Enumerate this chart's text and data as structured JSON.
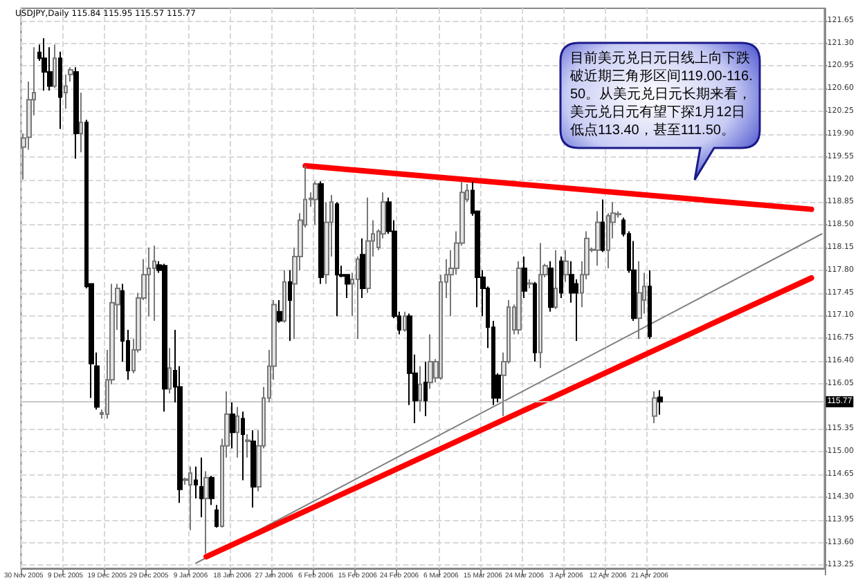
{
  "chart_data": {
    "type": "candlestick",
    "title": "USDJPY,Daily 115.84 115.95 115.57 115.77",
    "annotations": [
      "目前美元兑日元日线上向下跌破近期三角形区间119.00-116.50。从美元兑日元长期来看，美元兑日元有望下探1月12日低点113.40，甚至111.50。"
    ],
    "categories": [
      "30 Nov 2005",
      null,
      null,
      null,
      null,
      null,
      null,
      null,
      "9 Dec 2005",
      null,
      null,
      null,
      null,
      null,
      null,
      null,
      "19 Dec 2005",
      null,
      null,
      null,
      null,
      null,
      null,
      null,
      "29 Dec 2005",
      null,
      null,
      null,
      null,
      null,
      null,
      null,
      "9 Jan 2006",
      null,
      null,
      null,
      null,
      null,
      null,
      null,
      "18 Jan 2006",
      null,
      null,
      null,
      null,
      null,
      null,
      null,
      "27 Jan 2006",
      null,
      null,
      null,
      null,
      null,
      null,
      null,
      "6 Feb 2006",
      null,
      null,
      null,
      null,
      null,
      null,
      null,
      "15 Feb 2006",
      null,
      null,
      null,
      null,
      null,
      null,
      null,
      "24 Feb 2006",
      null,
      null,
      null,
      null,
      null,
      null,
      null,
      "6 Mar 2006",
      null,
      null,
      null,
      null,
      null,
      null,
      null,
      "15 Mar 2006",
      null,
      null,
      null,
      null,
      null,
      null,
      null,
      "24 Mar 2006",
      null,
      null,
      null,
      null,
      null,
      null,
      null,
      "3 Apr 2006",
      null,
      null,
      null,
      null,
      null,
      null,
      null,
      "12 Apr 2006",
      null,
      null,
      null,
      null,
      null,
      null,
      null,
      "21 Apr 2006",
      null,
      null,
      null,
      null,
      null,
      null,
      null,
      null,
      null,
      null,
      null,
      null,
      null,
      null,
      null,
      null,
      null,
      null,
      null,
      null,
      null,
      null,
      null,
      null,
      null,
      null,
      null,
      null,
      null,
      null,
      null,
      null,
      null
    ],
    "ohlc": [
      [
        119.7,
        119.91,
        119.2,
        119.84
      ],
      [
        119.85,
        120.71,
        119.66,
        120.43
      ],
      [
        120.43,
        121.24,
        120.19,
        120.54
      ],
      [
        121.16,
        121.28,
        121.03,
        121.07
      ],
      [
        121.07,
        121.38,
        120.57,
        120.86
      ],
      [
        120.86,
        121.24,
        120.57,
        120.64
      ],
      [
        120.64,
        121.28,
        120.61,
        121.07
      ],
      [
        121.07,
        121.17,
        119.98,
        120.47
      ],
      [
        120.54,
        120.82,
        120.29,
        120.64
      ],
      [
        120.82,
        120.93,
        120.71,
        120.89
      ],
      [
        120.86,
        120.93,
        119.52,
        119.91
      ],
      [
        119.91,
        120.54,
        119.62,
        120.08
      ],
      [
        120.08,
        120.12,
        117.52,
        117.55
      ],
      [
        117.59,
        117.59,
        115.83,
        116.36
      ],
      [
        116.32,
        116.53,
        115.65,
        115.69
      ],
      [
        115.58,
        115.65,
        115.51,
        115.6
      ],
      [
        115.58,
        116.57,
        115.51,
        116.11
      ],
      [
        116.11,
        117.59,
        116.04,
        117.3
      ],
      [
        117.27,
        117.59,
        116.88,
        117.52
      ],
      [
        117.48,
        117.59,
        116.39,
        116.71
      ],
      [
        116.71,
        116.88,
        116.11,
        116.25
      ],
      [
        116.25,
        116.74,
        116.21,
        116.57
      ],
      [
        116.57,
        117.45,
        116.53,
        117.37
      ],
      [
        117.37,
        117.97,
        117.34,
        117.73
      ],
      [
        117.73,
        118.15,
        117.09,
        117.83
      ],
      [
        117.83,
        118.18,
        117.02,
        117.94
      ],
      [
        117.88,
        117.94,
        117.76,
        117.8
      ],
      [
        117.87,
        117.9,
        115.62,
        115.97
      ],
      [
        115.97,
        116.6,
        115.9,
        116.29
      ],
      [
        116.25,
        116.88,
        115.76,
        116.0
      ],
      [
        116.0,
        116.32,
        114.21,
        114.42
      ],
      [
        114.56,
        114.6,
        114.49,
        114.58
      ],
      [
        114.49,
        114.77,
        113.79,
        114.67
      ],
      [
        114.56,
        114.77,
        114.28,
        114.49
      ],
      [
        114.46,
        114.91,
        113.99,
        114.28
      ],
      [
        114.28,
        114.7,
        113.43,
        114.6
      ],
      [
        114.6,
        114.63,
        114.18,
        114.28
      ],
      [
        114.1,
        114.18,
        113.83,
        113.85
      ],
      [
        113.85,
        115.2,
        113.83,
        115.09
      ],
      [
        115.09,
        115.93,
        114.91,
        115.58
      ],
      [
        115.58,
        115.76,
        115.05,
        115.3
      ],
      [
        115.3,
        115.69,
        114.91,
        115.55
      ],
      [
        115.51,
        115.62,
        114.56,
        115.27
      ],
      [
        115.16,
        115.27,
        114.91,
        115.18
      ],
      [
        115.16,
        115.33,
        114.14,
        114.46
      ],
      [
        114.46,
        115.33,
        114.39,
        115.09
      ],
      [
        115.09,
        116.0,
        115.05,
        115.83
      ],
      [
        115.83,
        116.57,
        115.76,
        116.32
      ],
      [
        116.32,
        117.34,
        116.11,
        117.27
      ],
      [
        117.16,
        117.34,
        116.99,
        117.02
      ],
      [
        117.02,
        117.8,
        116.99,
        117.62
      ],
      [
        117.62,
        117.8,
        116.71,
        117.34
      ],
      [
        117.59,
        118.15,
        116.74,
        118.01
      ],
      [
        118.01,
        118.68,
        117.8,
        118.57
      ],
      [
        118.5,
        119.41,
        118.46,
        118.89
      ],
      [
        118.89,
        119.0,
        118.78,
        118.91
      ],
      [
        118.89,
        119.17,
        118.5,
        119.13
      ],
      [
        119.13,
        119.17,
        117.59,
        117.69
      ],
      [
        117.73,
        118.85,
        117.59,
        118.54
      ],
      [
        118.54,
        118.96,
        118.01,
        118.85
      ],
      [
        118.82,
        118.85,
        117.09,
        117.73
      ],
      [
        117.73,
        117.87,
        117.69,
        117.71
      ],
      [
        117.73,
        117.73,
        117.37,
        117.59
      ],
      [
        117.59,
        117.76,
        117.09,
        117.66
      ],
      [
        117.66,
        118.01,
        116.74,
        117.97
      ],
      [
        118.04,
        118.29,
        117.37,
        117.52
      ],
      [
        117.52,
        118.92,
        117.45,
        118.25
      ],
      [
        118.25,
        118.57,
        118.01,
        118.36
      ],
      [
        118.15,
        118.43,
        118.11,
        118.4
      ],
      [
        118.36,
        119.0,
        118.29,
        118.85
      ],
      [
        118.85,
        118.92,
        118.36,
        118.4
      ],
      [
        118.4,
        118.57,
        117.06,
        117.09
      ],
      [
        117.09,
        117.16,
        116.81,
        116.88
      ],
      [
        116.88,
        117.16,
        116.85,
        117.09
      ],
      [
        117.09,
        117.13,
        115.72,
        116.21
      ],
      [
        116.21,
        116.5,
        115.44,
        115.79
      ],
      [
        115.79,
        116.32,
        115.62,
        116.04
      ],
      [
        116.07,
        116.39,
        115.55,
        115.79
      ],
      [
        116.07,
        116.81,
        115.97,
        116.39
      ],
      [
        116.14,
        116.43,
        116.07,
        116.39
      ],
      [
        116.14,
        117.73,
        116.11,
        117.62
      ],
      [
        117.62,
        117.97,
        117.37,
        117.73
      ],
      [
        117.73,
        118.11,
        117.09,
        117.83
      ],
      [
        117.83,
        118.4,
        117.73,
        118.22
      ],
      [
        118.22,
        119.17,
        118.18,
        119.0
      ],
      [
        118.89,
        119.13,
        118.85,
        119.03
      ],
      [
        119.03,
        119.17,
        118.64,
        118.68
      ],
      [
        118.71,
        118.71,
        117.23,
        117.69
      ],
      [
        117.69,
        117.8,
        117.09,
        117.52
      ],
      [
        117.52,
        117.55,
        116.6,
        116.92
      ],
      [
        116.92,
        117.02,
        115.72,
        115.83
      ],
      [
        116.18,
        116.21,
        115.76,
        115.83
      ],
      [
        116.18,
        116.53,
        115.55,
        116.39
      ],
      [
        116.39,
        117.34,
        116.36,
        117.23
      ],
      [
        116.88,
        117.27,
        116.81,
        117.23
      ],
      [
        116.88,
        117.94,
        116.81,
        117.83
      ],
      [
        117.83,
        118.01,
        117.37,
        117.48
      ],
      [
        117.59,
        117.66,
        117.52,
        117.6
      ],
      [
        117.59,
        117.62,
        116.39,
        116.53
      ],
      [
        116.53,
        118.22,
        116.29,
        117.73
      ],
      [
        117.73,
        117.9,
        117.69,
        117.87
      ],
      [
        117.83,
        117.94,
        117.16,
        117.23
      ],
      [
        117.23,
        118.11,
        117.2,
        117.52
      ],
      [
        117.94,
        118.01,
        117.37,
        117.45
      ],
      [
        117.73,
        118.11,
        117.62,
        117.94
      ],
      [
        117.73,
        117.94,
        117.3,
        117.45
      ],
      [
        117.59,
        117.66,
        116.71,
        117.45
      ],
      [
        117.45,
        117.94,
        117.23,
        117.73
      ],
      [
        117.73,
        118.4,
        117.66,
        118.29
      ],
      [
        118.11,
        118.15,
        118.08,
        118.12
      ],
      [
        118.11,
        118.71,
        117.87,
        118.54
      ],
      [
        118.54,
        118.89,
        118.08,
        118.11
      ],
      [
        118.11,
        118.68,
        117.83,
        118.64
      ],
      [
        118.54,
        118.85,
        118.29,
        118.68
      ],
      [
        118.66,
        118.71,
        118.61,
        118.67
      ],
      [
        118.57,
        118.61,
        118.32,
        118.36
      ],
      [
        118.36,
        118.4,
        117.76,
        117.8
      ],
      [
        117.8,
        118.25,
        117.02,
        117.06
      ],
      [
        117.06,
        117.94,
        116.74,
        117.45
      ],
      [
        117.34,
        117.76,
        117.13,
        117.55
      ],
      [
        117.55,
        117.8,
        116.74,
        116.78
      ],
      [
        115.55,
        115.93,
        115.44,
        115.83
      ],
      [
        115.84,
        115.95,
        115.57,
        115.77
      ],
      null,
      null,
      null,
      null,
      null,
      null,
      null,
      null,
      null,
      null,
      null,
      null,
      null,
      null,
      null,
      null,
      null,
      null,
      null,
      null,
      null,
      null,
      null,
      null,
      null,
      null,
      null,
      null,
      null,
      null,
      null
    ],
    "series": [
      {
        "type": "line",
        "color": "#ff0000",
        "values": [
          null,
          null,
          null,
          null,
          null,
          null,
          null,
          null,
          null,
          null,
          null,
          null,
          null,
          null,
          null,
          null,
          null,
          null,
          null,
          null,
          null,
          null,
          null,
          null,
          null,
          null,
          null,
          null,
          null,
          null,
          null,
          null,
          null,
          null,
          null,
          null,
          null,
          null,
          null,
          null,
          null,
          null,
          null,
          null,
          null,
          null,
          null,
          null,
          null,
          null,
          null,
          null,
          null,
          null,
          119.41,
          null,
          null,
          null,
          null,
          null,
          null,
          null,
          null,
          null,
          null,
          null,
          null,
          null,
          null,
          null,
          null,
          null,
          null,
          null,
          null,
          null,
          null,
          null,
          null,
          null,
          null,
          null,
          null,
          null,
          null,
          null,
          null,
          null,
          null,
          null,
          null,
          null,
          null,
          null,
          null,
          null,
          null,
          null,
          null,
          null,
          null,
          null,
          null,
          null,
          null,
          null,
          null,
          null,
          null,
          null,
          null,
          null,
          null,
          null,
          null,
          null,
          null,
          null,
          null,
          null,
          null,
          null,
          null,
          null,
          null,
          null,
          null,
          null,
          null,
          null,
          null,
          null,
          null,
          null,
          null,
          null,
          null,
          null,
          null,
          null,
          null,
          null,
          null,
          null,
          null,
          null,
          null,
          null,
          null,
          null,
          null,
          118.74,
          null,
          null
        ]
      },
      {
        "type": "line",
        "color": "#808080",
        "values": [
          null,
          null,
          null,
          null,
          null,
          null,
          null,
          null,
          null,
          null,
          null,
          null,
          null,
          null,
          null,
          null,
          null,
          null,
          null,
          null,
          null,
          null,
          null,
          null,
          null,
          null,
          null,
          null,
          null,
          null,
          null,
          null,
          null,
          113.28,
          null,
          null,
          null,
          null,
          null,
          null,
          null,
          null,
          null,
          null,
          null,
          null,
          null,
          null,
          null,
          null,
          null,
          null,
          null,
          null,
          null,
          null,
          null,
          null,
          null,
          null,
          null,
          null,
          null,
          null,
          null,
          null,
          null,
          null,
          null,
          null,
          null,
          null,
          null,
          null,
          null,
          null,
          null,
          null,
          null,
          null,
          null,
          null,
          null,
          null,
          null,
          null,
          null,
          null,
          null,
          null,
          null,
          null,
          null,
          null,
          null,
          null,
          null,
          null,
          null,
          null,
          null,
          null,
          null,
          null,
          null,
          null,
          null,
          null,
          null,
          null,
          null,
          null,
          null,
          null,
          null,
          null,
          null,
          null,
          null,
          null,
          null,
          null,
          null,
          null,
          null,
          null,
          null,
          null,
          null,
          null,
          null,
          null,
          null,
          null,
          null,
          null,
          null,
          null,
          null,
          null,
          null,
          null,
          null,
          null,
          null,
          null,
          null,
          null,
          null,
          null,
          null,
          null,
          null,
          118.36
        ]
      },
      {
        "type": "line",
        "color": "#ff0000",
        "values": [
          null,
          null,
          null,
          null,
          null,
          null,
          null,
          null,
          null,
          null,
          null,
          null,
          null,
          null,
          null,
          null,
          null,
          null,
          null,
          null,
          null,
          null,
          null,
          null,
          null,
          null,
          null,
          null,
          null,
          null,
          null,
          null,
          null,
          null,
          null,
          113.38,
          null,
          null,
          null,
          null,
          null,
          null,
          null,
          null,
          null,
          null,
          null,
          null,
          null,
          null,
          null,
          null,
          null,
          null,
          null,
          null,
          null,
          null,
          null,
          null,
          null,
          null,
          null,
          null,
          null,
          null,
          null,
          null,
          null,
          null,
          null,
          null,
          null,
          null,
          null,
          null,
          null,
          null,
          null,
          null,
          null,
          null,
          null,
          null,
          null,
          null,
          null,
          null,
          null,
          null,
          null,
          null,
          null,
          null,
          null,
          null,
          null,
          null,
          null,
          null,
          null,
          null,
          null,
          null,
          null,
          null,
          null,
          null,
          null,
          null,
          null,
          null,
          null,
          null,
          null,
          null,
          null,
          null,
          null,
          null,
          null,
          null,
          null,
          null,
          null,
          null,
          null,
          null,
          null,
          null,
          null,
          null,
          null,
          null,
          null,
          null,
          null,
          null,
          null,
          null,
          null,
          null,
          null,
          null,
          null,
          null,
          null,
          null,
          null,
          null,
          null,
          117.68,
          null,
          null
        ]
      }
    ],
    "ylim": [
      113.2,
      121.84
    ],
    "yticks": [
      121.65,
      {
        "value": 121.3,
        "label": "121.30"
      },
      120.95,
      {
        "value": 120.6,
        "label": "120.60"
      },
      120.25,
      {
        "value": 119.9,
        "label": "119.90"
      },
      119.55,
      {
        "value": 119.2,
        "label": "119.20"
      },
      118.85,
      {
        "value": 118.5,
        "label": "118.50"
      },
      118.15,
      {
        "value": 117.8,
        "label": "117.80"
      },
      117.45,
      {
        "value": 117.1,
        "label": "117.10"
      },
      116.75,
      {
        "value": 116.4,
        "label": "116.40"
      },
      116.05,
      115.35,
      {
        "value": 115,
        "label": "115.00"
      },
      114.65,
      {
        "value": 114.3,
        "label": "114.30"
      },
      113.95,
      {
        "value": 113.6,
        "label": "113.60"
      },
      113.25
    ],
    "ref_lines": [
      {
        "axis": "y",
        "value": 115.77,
        "label": "115.77"
      }
    ],
    "grid": true
  }
}
